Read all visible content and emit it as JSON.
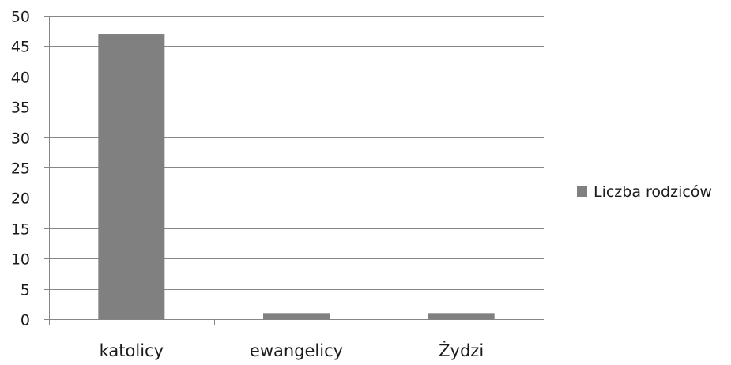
{
  "chart_data": {
    "type": "bar",
    "categories": [
      "katolicy",
      "ewangelicy",
      "Żydzi"
    ],
    "series": [
      {
        "name": "Liczba rodziców",
        "values": [
          47,
          1,
          1
        ],
        "color": "#808080"
      }
    ],
    "ylim": [
      0,
      50
    ],
    "yticks": [
      0,
      5,
      10,
      15,
      20,
      25,
      30,
      35,
      40,
      45,
      50
    ],
    "grid": true,
    "legend_position": "right",
    "gridline_color": "#868686",
    "axis_color": "#868686"
  }
}
